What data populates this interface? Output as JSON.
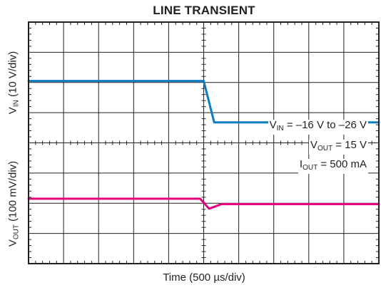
{
  "chart_data": {
    "type": "line",
    "title": "LINE TRANSIENT",
    "xlabel": "Time (500 µs/div)",
    "grid": true,
    "divisions": {
      "x": 10,
      "y": 8
    },
    "panels": [
      {
        "ylabel": {
          "main": "V",
          "sub": "IN",
          "rest": " (10 V/div)"
        },
        "series": [
          {
            "color": "#e6007e",
            "x": [
              0,
              4.9,
              5.02,
              5.15,
              5.3,
              5.5,
              10
            ],
            "y": [
              2.15,
              2.15,
              2.0,
              1.82,
              1.88,
              1.97,
              1.97
            ]
          }
        ]
      },
      {
        "ylabel": {
          "main": "V",
          "sub": "OUT",
          "rest": " (100 mV/div)"
        },
        "series": [
          {
            "color": "#0d7dc1",
            "x": [
              0,
              5.0,
              5.3,
              10
            ],
            "y": [
              6.05,
              6.05,
              4.68,
              4.68
            ]
          }
        ]
      }
    ],
    "annotations": [
      {
        "main": "V",
        "sub": "IN",
        "rest": " = –16 V to –26 V"
      },
      {
        "main": "V",
        "sub": "OUT",
        "rest": " = 15 V"
      },
      {
        "main": "I",
        "sub": "OUT",
        "rest": " = 500 mA"
      }
    ]
  }
}
